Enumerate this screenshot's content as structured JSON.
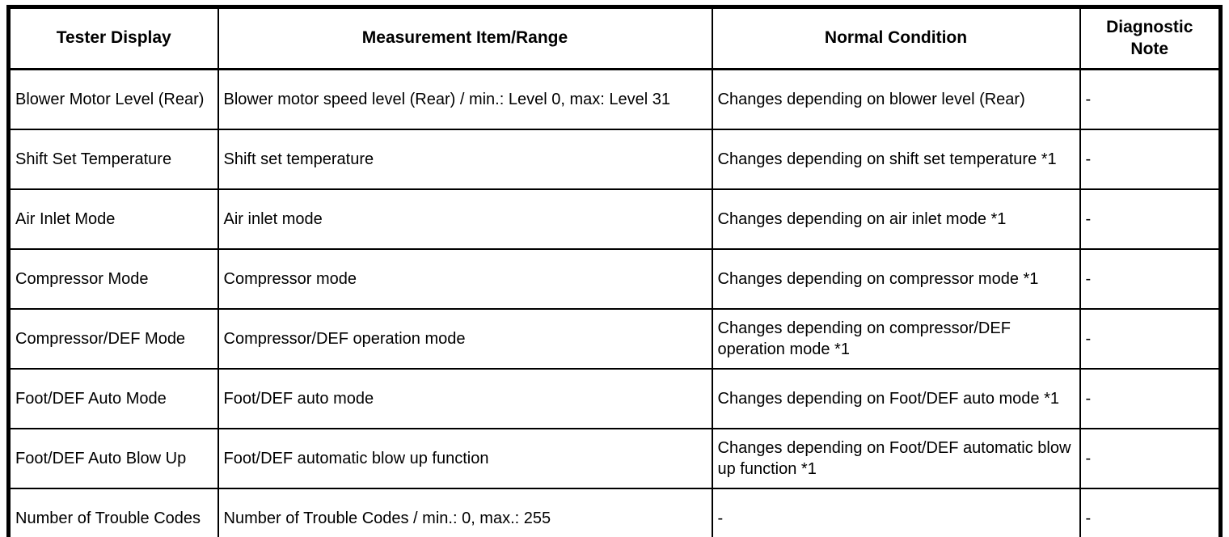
{
  "table": {
    "background": "#ffffff",
    "border_color": "#000000",
    "text_color": "#000000",
    "header": [
      "Tester Display",
      "Measurement Item/Range",
      "Normal Condition",
      "Diagnostic Note"
    ],
    "rows": [
      [
        "Blower Motor Level (Rear)",
        "Blower motor speed level (Rear) / min.: Level 0, max: Level 31",
        "Changes depending on blower level (Rear)",
        "-"
      ],
      [
        "Shift Set Temperature",
        "Shift set temperature",
        "Changes depending on shift set temperature *1",
        "-"
      ],
      [
        "Air Inlet Mode",
        "Air inlet mode",
        "Changes depending on air inlet mode *1",
        "-"
      ],
      [
        "Compressor Mode",
        "Compressor mode",
        "Changes depending on compressor mode *1",
        "-"
      ],
      [
        "Compressor/DEF Mode",
        "Compressor/DEF operation mode",
        "Changes depending on compressor/DEF operation mode *1",
        "-"
      ],
      [
        "Foot/DEF Auto Mode",
        "Foot/DEF auto mode",
        "Changes depending on Foot/DEF auto mode *1",
        "-"
      ],
      [
        "Foot/DEF Auto Blow Up",
        "Foot/DEF automatic blow up function",
        "Changes depending on Foot/DEF automatic blow up function *1",
        "-"
      ],
      [
        "Number of Trouble Codes",
        "Number of Trouble Codes / min.: 0, max.: 255",
        "-",
        "-"
      ]
    ]
  }
}
